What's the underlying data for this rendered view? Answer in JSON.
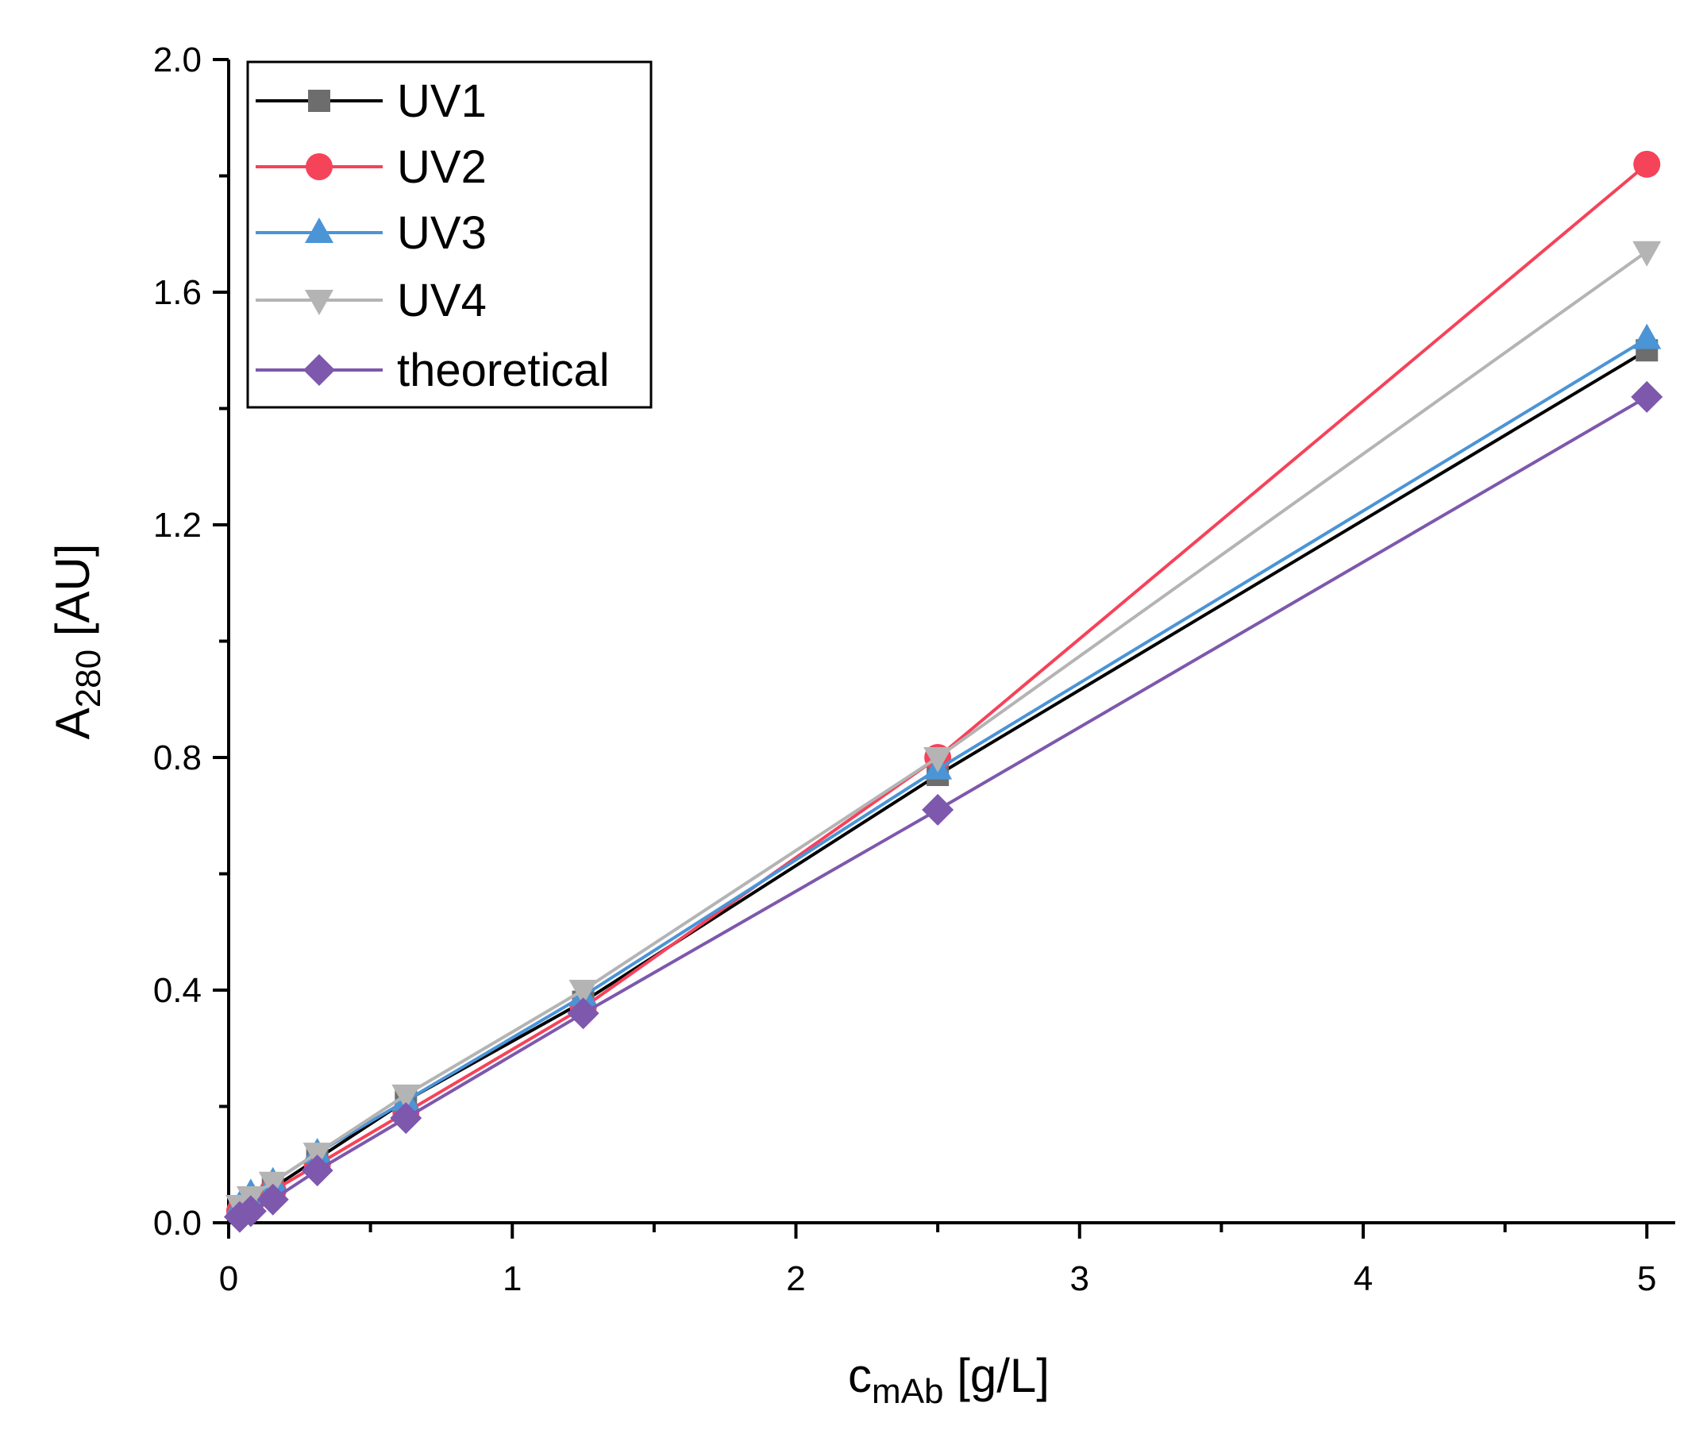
{
  "chart_data": {
    "type": "line",
    "title": "",
    "xlabel": {
      "main": "c",
      "sub": "mAb",
      "unit": " [g/L]"
    },
    "ylabel": {
      "main": "A",
      "sub": "280",
      "unit": " [AU]"
    },
    "xlim": [
      0,
      5.1
    ],
    "ylim": [
      0,
      2.0
    ],
    "xticks": [
      0,
      1,
      2,
      3,
      4,
      5
    ],
    "yticks": [
      0.0,
      0.4,
      0.8,
      1.2,
      1.6,
      2.0
    ],
    "xtick_labels": [
      "0",
      "1",
      "2",
      "3",
      "4",
      "5"
    ],
    "ytick_labels": [
      "0.0",
      "0.4",
      "0.8",
      "1.2",
      "1.6",
      "2.0"
    ],
    "grid": false,
    "legend_position": "top-left",
    "x": [
      0.039,
      0.078,
      0.156,
      0.3125,
      0.625,
      1.25,
      2.5,
      5.0
    ],
    "series": [
      {
        "name": "UV1",
        "color": "#000000",
        "marker_color": "#6d6d6d",
        "marker": "square",
        "values": [
          0.025,
          0.04,
          0.06,
          0.11,
          0.21,
          0.38,
          0.77,
          1.5
        ]
      },
      {
        "name": "UV2",
        "color": "#f5435a",
        "marker_color": "#f5435a",
        "marker": "circle",
        "values": [
          0.02,
          0.035,
          0.055,
          0.1,
          0.19,
          0.37,
          0.8,
          1.82
        ]
      },
      {
        "name": "UV3",
        "color": "#4b94d6",
        "marker_color": "#4b94d6",
        "marker": "triangle-up",
        "values": [
          0.03,
          0.05,
          0.07,
          0.12,
          0.21,
          0.39,
          0.78,
          1.52
        ]
      },
      {
        "name": "UV4",
        "color": "#b4b4b4",
        "marker_color": "#b4b4b4",
        "marker": "triangle-down",
        "values": [
          0.03,
          0.045,
          0.07,
          0.12,
          0.22,
          0.4,
          0.8,
          1.67
        ]
      },
      {
        "name": "theoretical",
        "color": "#7d58ad",
        "marker_color": "#7d58ad",
        "marker": "diamond",
        "values": [
          0.01,
          0.02,
          0.04,
          0.09,
          0.18,
          0.36,
          0.71,
          1.42
        ]
      }
    ]
  }
}
